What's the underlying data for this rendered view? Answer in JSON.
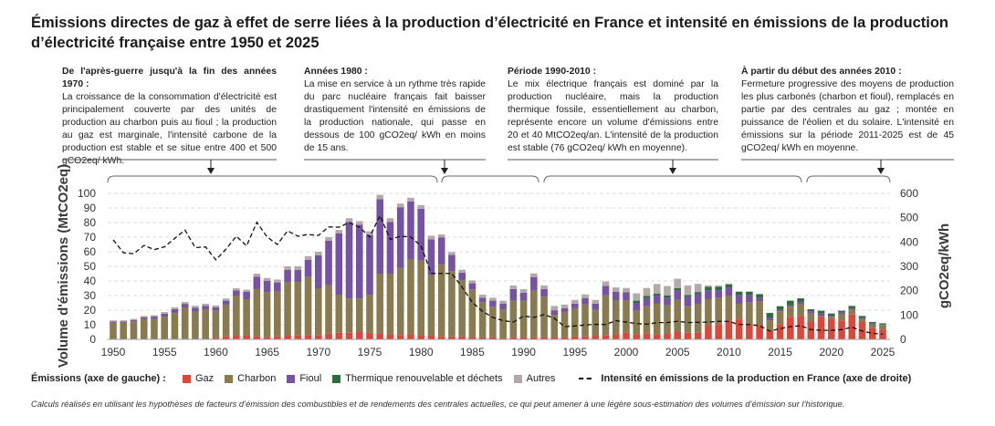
{
  "title": "Émissions directes de gaz à effet de serre liées à la production d’électricité en France et intensité en émissions de la production d’électricité française entre 1950 et 2025",
  "annotations": [
    {
      "heading": "De l'après-guerre jusqu'à la fin des années 1970 :",
      "text": "La croissance de la consommation d'électricité est principalement couverte par des unités de production au charbon puis au fioul ; la production au gaz est marginale, l'intensité carbone de la production est stable et se situe entre 400 et 500 gCO2eq/ kWh."
    },
    {
      "heading": "Années 1980 :",
      "text": "La mise en service à un rythme très rapide du parc nucléaire français fait baisser drastiquement l'intensité en émissions de la production nationale, qui passe en dessous de 100 gCO2eq/ kWh en moins de 15 ans."
    },
    {
      "heading": "Période 1990-2010 :",
      "text": "Le mix électrique français est dominé par la production nucléaire, mais la production thermique fossile, essentiellement au charbon, représente encore un volume d'émissions entre 20 et 40 MtCO2eq/an. L'intensité de la production est stable (76 gCO2eq/ kWh en moyenne)."
    },
    {
      "heading": "À partir du début des années 2010 :",
      "text": "Fermeture progressive des moyens de production les plus carbonés (charbon et fioul), remplacés en partie par des centrales au gaz ; montée en puissance de l'éolien et du solaire. L'intensité en émissions sur la période 2011-2025 est de 45 gCO2eq/ kWh en moyenne."
    }
  ],
  "legend": {
    "title": "Émissions (axe de gauche) :",
    "items": [
      "Gaz",
      "Charbon",
      "Fioul",
      "Thermique renouvelable et déchets",
      "Autres"
    ],
    "line": "Intensité en émissions de la production en France (axe de droite)"
  },
  "footnote": "Calculs réalisés en utilisant les hypothèses de facteurs d’émission des combustibles et de rendements des centrales actuelles, ce qui peut amener à une légère sous-estimation des volumes d’émission sur l’historique.",
  "chart_data": {
    "type": "bar",
    "stacked": true,
    "ylabel": "Volume d'émissions (MtCO2eq)",
    "y2label": "gCO2eq/kWh",
    "ylim": [
      0,
      100
    ],
    "y2lim": [
      0,
      600
    ],
    "yticks": [
      0,
      10,
      20,
      30,
      40,
      50,
      60,
      70,
      80,
      90,
      100
    ],
    "y2ticks": [
      0,
      100,
      200,
      300,
      400,
      500,
      600
    ],
    "xticks": [
      1950,
      1955,
      1960,
      1965,
      1970,
      1975,
      1980,
      1985,
      1990,
      1995,
      2000,
      2005,
      2010,
      2015,
      2020,
      2025
    ],
    "grid": true,
    "legend_position": "bottom",
    "x_start": 1950,
    "x_end": 2025,
    "colors": {
      "Gaz": "#d9483b",
      "Charbon": "#8a7a4f",
      "Fioul": "#7652a3",
      "Thermique renouvelable et déchets": "#2f6b3c",
      "Autres": "#b3aaa8",
      "Intensité": "#111111"
    },
    "series": [
      {
        "name": "Gaz",
        "values": [
          0,
          0,
          0,
          0,
          0,
          0,
          0,
          0,
          0,
          0,
          1,
          2,
          2.5,
          2.5,
          2,
          1.5,
          2,
          2.5,
          3,
          3,
          3,
          4,
          4.5,
          4.5,
          5,
          4.5,
          4,
          3.5,
          3,
          3.5,
          2.5,
          2.5,
          2,
          2,
          2,
          1.5,
          1.5,
          1.5,
          1,
          1.5,
          1.5,
          1.5,
          1.5,
          1.5,
          1.5,
          2,
          2,
          2.5,
          3,
          3.5,
          4.5,
          3.5,
          4,
          3.5,
          4,
          5,
          4.5,
          4.6,
          9.4,
          10.4,
          12.9,
          14,
          10.2,
          9.8,
          5.6,
          10.2,
          15.4,
          16,
          11.9,
          15,
          14,
          12.9,
          17,
          11.9,
          7.7,
          6.7
        ]
      },
      {
        "name": "Charbon",
        "values": [
          11.5,
          11.5,
          12.3,
          14,
          14,
          15.6,
          18,
          21.9,
          19,
          20.6,
          18.6,
          21.8,
          27.5,
          25,
          32.4,
          30.8,
          30.7,
          36.5,
          36.4,
          39.7,
          32,
          33,
          26.1,
          23.5,
          23,
          26.1,
          41,
          41.5,
          46,
          51.5,
          51.5,
          41.5,
          49.5,
          44.9,
          38.4,
          32.7,
          23.9,
          20.8,
          19.6,
          25,
          25,
          31.8,
          27.7,
          15.2,
          17.3,
          19.3,
          22,
          17.7,
          27.2,
          23,
          22.4,
          16.1,
          18.7,
          20.9,
          19.3,
          22,
          18.2,
          19.8,
          18.1,
          18.1,
          16.7,
          10.4,
          15.2,
          16.2,
          7.3,
          9,
          6.9,
          8,
          5.8,
          1,
          1.4,
          4.6,
          3.6,
          2.1,
          2.5,
          3.1
        ]
      },
      {
        "name": "Fioul",
        "values": [
          0.8,
          0.8,
          1,
          1.2,
          1.6,
          2,
          2.7,
          2.4,
          2.6,
          2.4,
          2.3,
          2.7,
          3.5,
          5,
          8.6,
          7.7,
          6.3,
          8.5,
          8.1,
          11.8,
          22.5,
          30.5,
          41.9,
          52.5,
          50.5,
          40.9,
          51,
          35.5,
          41.5,
          39.5,
          35.5,
          24.5,
          18.4,
          10.9,
          5.3,
          4.2,
          3.2,
          4.2,
          3.9,
          7.9,
          5.4,
          9.4,
          5.2,
          3.2,
          2.5,
          3.2,
          4.3,
          4.3,
          6.4,
          6.1,
          5.3,
          5.4,
          5.5,
          5.5,
          5.2,
          6.5,
          6.2,
          6.6,
          6.2,
          5.2,
          5.8,
          5.8,
          4.8,
          2.5,
          2.1,
          1,
          1,
          1.4,
          1.5,
          1.7,
          0.6,
          1,
          0.7,
          0.6,
          0.6,
          0.4
        ]
      },
      {
        "name": "Thermique renouvelable et déchets",
        "values": [
          0,
          0,
          0,
          0,
          0,
          0,
          0,
          0,
          0,
          0,
          0,
          0,
          0,
          0,
          0,
          0,
          0,
          0,
          0,
          0,
          0,
          0,
          0,
          0,
          0,
          0,
          0,
          0,
          0,
          0,
          0,
          0,
          0,
          0,
          0,
          0,
          0,
          0,
          0,
          0,
          0,
          0,
          0,
          0,
          0,
          0,
          0,
          0,
          0,
          0,
          0,
          1.5,
          1.5,
          1.5,
          1.5,
          1.5,
          1.5,
          1.4,
          2.2,
          2.4,
          2.2,
          2.5,
          2.5,
          2.5,
          3.1,
          2.5,
          3.2,
          2.7,
          1.4,
          1.9,
          1.7,
          1.1,
          1.6,
          1.4,
          1.1,
          0.8
        ]
      },
      {
        "name": "Autres",
        "values": [
          0.7,
          0.7,
          0.7,
          0.8,
          0.9,
          1.1,
          1.3,
          1.3,
          1.4,
          1.4,
          1.4,
          1.5,
          1.5,
          1.5,
          2,
          2,
          2,
          2.5,
          2.5,
          2.5,
          2.5,
          2.5,
          2.5,
          2.5,
          2.5,
          2.5,
          3,
          2.5,
          2.5,
          2.5,
          2.5,
          2.5,
          2,
          2,
          2,
          2,
          2,
          2,
          2,
          2.5,
          2.5,
          2.5,
          2.5,
          3,
          2.5,
          2.5,
          2.5,
          2.5,
          3,
          3,
          3,
          5,
          5.5,
          6.5,
          6.5,
          6.5,
          6.5,
          5.6,
          1,
          0.8,
          0.7,
          0,
          0,
          0,
          0,
          0,
          0,
          0,
          0,
          0,
          0,
          0,
          0,
          0,
          0,
          0
        ]
      },
      {
        "name": "Intensité",
        "axis": "right",
        "line": "dashed",
        "values": [
          409,
          356,
          352,
          386,
          369,
          380,
          415,
          449,
          377,
          380,
          327,
          371,
          424,
          384,
          481,
          421,
          390,
          446,
          424,
          431,
          427,
          462,
          461,
          480,
          461,
          421,
          509,
          411,
          424,
          421,
          384,
          271,
          271,
          271,
          215,
          152,
          115,
          90,
          77,
          71,
          96,
          90,
          102,
          86,
          52,
          55,
          59,
          62,
          61,
          77,
          71,
          65,
          62,
          69,
          69,
          74,
          69,
          70,
          71,
          74,
          74,
          61,
          61,
          56,
          34,
          44,
          52,
          56,
          40,
          37,
          37,
          40,
          50,
          34,
          25,
          21
        ]
      }
    ]
  },
  "periods": [
    "1950-1981",
    "1982-1991",
    "1992-2016",
    "2017-2025"
  ]
}
